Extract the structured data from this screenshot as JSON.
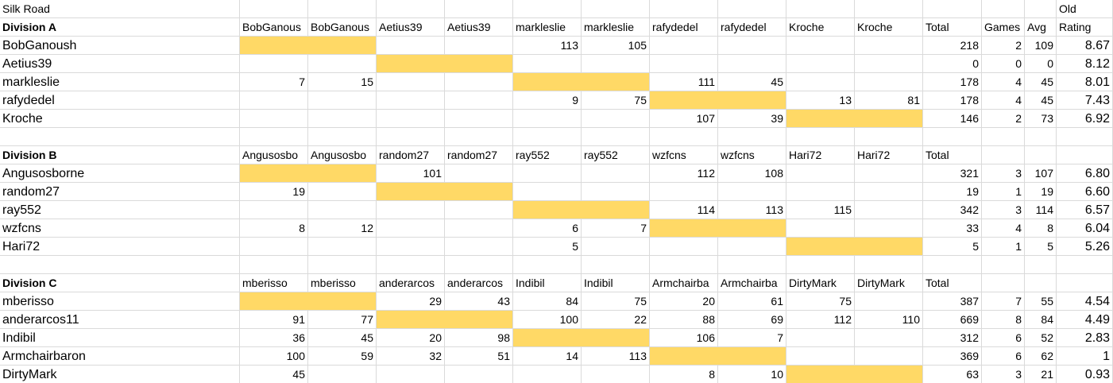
{
  "sheet": {
    "rows": [
      [
        "Silk Road",
        null,
        null,
        null,
        null,
        null,
        null,
        null,
        null,
        null,
        null,
        null,
        null,
        null,
        "Old"
      ],
      [
        "Division A",
        "BobGanous",
        "BobGanous",
        "Aetius39",
        "Aetius39",
        "markleslie",
        "markleslie",
        "rafydedel",
        "rafydedel",
        "Kroche",
        "Kroche",
        "Total",
        "Games",
        "Avg",
        "Rating"
      ],
      [
        "BobGanoush",
        null,
        null,
        null,
        null,
        113,
        105,
        null,
        null,
        null,
        null,
        218,
        2,
        109,
        8.67
      ],
      [
        "Aetius39",
        null,
        null,
        null,
        null,
        null,
        null,
        null,
        null,
        null,
        null,
        0,
        0,
        0,
        8.12
      ],
      [
        "markleslie",
        7,
        15,
        null,
        null,
        null,
        null,
        111,
        45,
        null,
        null,
        178,
        4,
        45,
        8.01
      ],
      [
        "rafydedel",
        null,
        null,
        null,
        null,
        9,
        75,
        null,
        null,
        13,
        81,
        178,
        4,
        45,
        7.43
      ],
      [
        "Kroche",
        null,
        null,
        null,
        null,
        null,
        null,
        107,
        39,
        null,
        null,
        146,
        2,
        73,
        6.92
      ],
      [],
      [
        "Division B",
        "Angusosbo",
        "Angusosbo",
        "random27",
        "random27",
        "ray552",
        "ray552",
        "wzfcns",
        "wzfcns",
        "Hari72",
        "Hari72",
        "Total"
      ],
      [
        "Angusosborne",
        null,
        null,
        101,
        null,
        null,
        null,
        112,
        108,
        null,
        null,
        321,
        3,
        107,
        "6.80"
      ],
      [
        "random27",
        19,
        null,
        null,
        null,
        null,
        null,
        null,
        null,
        null,
        null,
        19,
        1,
        19,
        "6.60"
      ],
      [
        "ray552",
        null,
        null,
        null,
        null,
        null,
        null,
        114,
        113,
        115,
        null,
        342,
        3,
        114,
        6.57
      ],
      [
        "wzfcns",
        8,
        12,
        null,
        null,
        6,
        7,
        null,
        null,
        null,
        null,
        33,
        4,
        8,
        6.04
      ],
      [
        "Hari72",
        null,
        null,
        null,
        null,
        5,
        null,
        null,
        null,
        null,
        null,
        5,
        1,
        5,
        5.26
      ],
      [],
      [
        "Division C",
        "mberisso",
        "mberisso",
        "anderarcos",
        "anderarcos",
        "Indibil",
        "Indibil",
        "Armchairba",
        "Armchairba",
        "DirtyMark",
        "DirtyMark",
        "Total"
      ],
      [
        "mberisso",
        null,
        null,
        29,
        43,
        84,
        75,
        20,
        61,
        75,
        null,
        387,
        7,
        55,
        4.54
      ],
      [
        "anderarcos11",
        91,
        77,
        null,
        null,
        100,
        22,
        88,
        69,
        112,
        110,
        669,
        8,
        84,
        4.49
      ],
      [
        "Indibil",
        36,
        45,
        20,
        98,
        null,
        null,
        106,
        7,
        null,
        null,
        312,
        6,
        52,
        2.83
      ],
      [
        "Armchairbaron",
        100,
        59,
        32,
        51,
        14,
        113,
        null,
        null,
        null,
        null,
        369,
        6,
        62,
        1
      ],
      [
        "DirtyMark",
        45,
        null,
        null,
        null,
        null,
        null,
        8,
        10,
        null,
        null,
        63,
        3,
        21,
        0.93
      ]
    ]
  }
}
